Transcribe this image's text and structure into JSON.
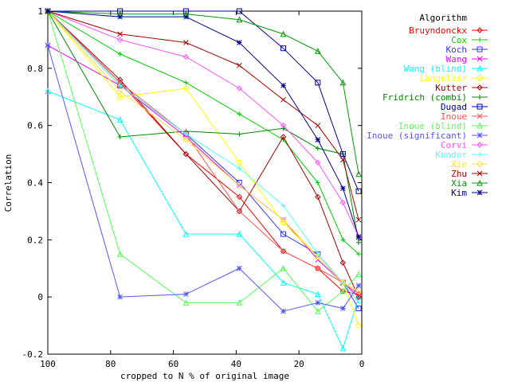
{
  "chart_data": {
    "type": "line",
    "title": "",
    "xlabel": "cropped to N % of original image",
    "ylabel": "Correlation",
    "xlim": [
      100,
      0
    ],
    "ylim": [
      -0.2,
      1
    ],
    "x_ticks": [
      100,
      80,
      60,
      40,
      20,
      0
    ],
    "y_ticks": [
      -0.2,
      0,
      0.2,
      0.4,
      0.6,
      0.8,
      1
    ],
    "x_tick_labels": [
      "100",
      "80",
      "60",
      "40",
      "20",
      "0"
    ],
    "y_tick_labels": [
      "-0.2",
      "0",
      "0.2",
      "0.4",
      "0.6",
      "0.8",
      "1"
    ],
    "grid": false,
    "legend_title": "Algorithm",
    "legend_position": "top-right",
    "x": [
      100,
      77,
      56,
      39,
      25,
      14,
      6,
      1
    ],
    "series": [
      {
        "name": "Bruyndonckx",
        "color": "#ff0000",
        "marker": "diamond",
        "values": [
          1.0,
          0.75,
          0.5,
          0.35,
          0.16,
          0.1,
          0.02,
          0.01
        ]
      },
      {
        "name": "Cox",
        "color": "#00cc00",
        "marker": "plus",
        "values": [
          1.0,
          0.85,
          0.75,
          0.64,
          0.55,
          0.4,
          0.2,
          0.15
        ]
      },
      {
        "name": "Koch",
        "color": "#3333ff",
        "marker": "square",
        "values": [
          1.0,
          0.74,
          0.57,
          0.4,
          0.22,
          0.15,
          0.05,
          -0.04
        ]
      },
      {
        "name": "Wang",
        "color": "#ff00ff",
        "marker": "cross",
        "values": [
          0.88,
          0.74,
          0.56,
          0.39,
          0.27,
          0.13,
          0.05,
          0.0
        ]
      },
      {
        "name": "Wang (blind)",
        "color": "#00ffff",
        "marker": "triangle",
        "values": [
          0.72,
          0.62,
          0.22,
          0.22,
          0.05,
          0.01,
          -0.18,
          0.0
        ]
      },
      {
        "name": "Langelaar",
        "color": "#ffff00",
        "marker": "circle",
        "values": [
          1.0,
          0.7,
          0.73,
          0.47,
          0.26,
          0.14,
          0.05,
          -0.1
        ]
      },
      {
        "name": "Kutter",
        "color": "#aa0000",
        "marker": "diamond",
        "values": [
          1.0,
          0.76,
          0.5,
          0.3,
          0.56,
          0.35,
          0.12,
          0.0
        ]
      },
      {
        "name": "Fridrich (combi)",
        "color": "#008800",
        "marker": "plus",
        "values": [
          1.0,
          0.56,
          0.58,
          0.57,
          0.59,
          0.52,
          0.5,
          0.19
        ]
      },
      {
        "name": "Dugad",
        "color": "#000099",
        "marker": "square",
        "values": [
          1.0,
          1.0,
          1.0,
          1.0,
          0.87,
          0.75,
          0.5,
          0.37
        ]
      },
      {
        "name": "Inoue",
        "color": "#ff5555",
        "marker": "cross",
        "values": [
          1.0,
          0.75,
          0.57,
          0.3,
          0.16,
          0.1,
          0.05,
          0.01
        ]
      },
      {
        "name": "Inoue (blind)",
        "color": "#55ff55",
        "marker": "triangle",
        "values": [
          1.0,
          0.15,
          -0.02,
          -0.02,
          0.1,
          -0.05,
          0.02,
          0.08
        ]
      },
      {
        "name": "Inoue (significant)",
        "color": "#5555ff",
        "marker": "star",
        "values": [
          0.88,
          0.0,
          0.01,
          0.1,
          -0.05,
          -0.02,
          -0.04,
          0.04
        ]
      },
      {
        "name": "Corvi",
        "color": "#ff55ff",
        "marker": "diamond",
        "values": [
          1.0,
          0.9,
          0.84,
          0.73,
          0.6,
          0.47,
          0.33,
          0.21
        ]
      },
      {
        "name": "Kundur",
        "color": "#55ffff",
        "marker": "plus",
        "values": [
          1.0,
          0.74,
          0.57,
          0.45,
          0.32,
          0.15,
          0.05,
          -0.02
        ]
      },
      {
        "name": "Xie",
        "color": "#ffdd44",
        "marker": "circle",
        "values": [
          1.0,
          0.72,
          0.55,
          0.39,
          0.27,
          0.14,
          0.05,
          0.02
        ]
      },
      {
        "name": "Zhu",
        "color": "#aa0000",
        "marker": "cross",
        "values": [
          1.0,
          0.92,
          0.89,
          0.81,
          0.69,
          0.6,
          0.48,
          0.27
        ]
      },
      {
        "name": "Xia",
        "color": "#009900",
        "marker": "triangle",
        "values": [
          1.0,
          0.99,
          0.99,
          0.97,
          0.92,
          0.86,
          0.75,
          0.43
        ]
      },
      {
        "name": "Kim",
        "color": "#000088",
        "marker": "star",
        "values": [
          1.0,
          0.98,
          0.98,
          0.89,
          0.74,
          0.55,
          0.38,
          0.21
        ]
      }
    ]
  }
}
